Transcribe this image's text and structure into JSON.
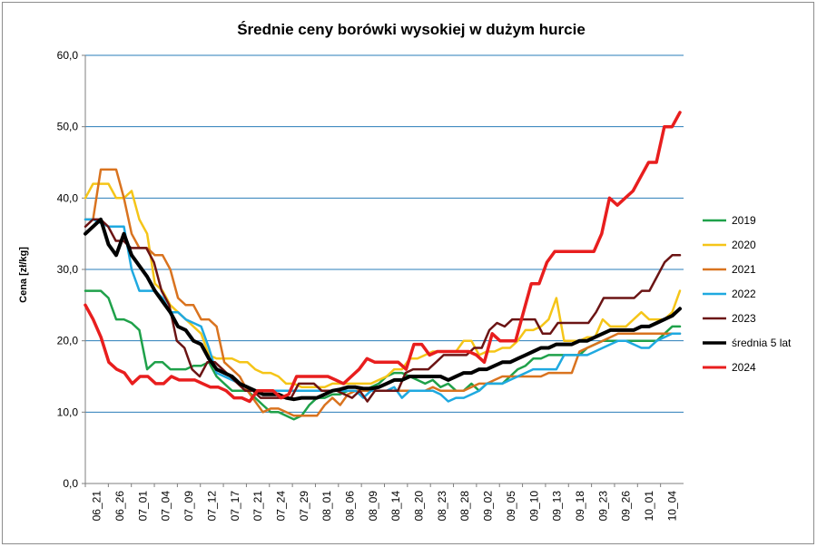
{
  "chart_data": {
    "type": "line",
    "title": "Średnie ceny borówki wysokiej w dużym hurcie",
    "ylabel": "Cena [zł/kg]",
    "xlabel": "",
    "ylim": [
      0,
      60
    ],
    "y_ticks": [
      "0,0",
      "10,0",
      "20,0",
      "30,0",
      "40,0",
      "50,0",
      "60,0"
    ],
    "x_ticks": [
      "06_21",
      "06_26",
      "07_01",
      "07_04",
      "07_09",
      "07_12",
      "07_17",
      "07_21",
      "07_24",
      "07_29",
      "08_01",
      "08_06",
      "08_09",
      "08_14",
      "08_20",
      "08_23",
      "08_28",
      "09_02",
      "09_05",
      "09_10",
      "09_13",
      "09_18",
      "09_23",
      "09_26",
      "10_01",
      "10_04"
    ],
    "grid": "horizontal",
    "legend_position": "right",
    "series": [
      {
        "name": "2019",
        "color": "#1fa14a",
        "width": 2.5,
        "values": [
          27,
          27,
          27,
          26,
          23,
          23,
          22.5,
          21.5,
          16,
          17,
          17,
          16,
          16,
          16,
          16.5,
          16.5,
          17,
          15,
          14,
          13,
          13,
          13,
          12,
          11,
          10,
          10,
          9.5,
          9,
          9.5,
          11,
          12,
          12,
          12.5,
          12.5,
          13,
          13,
          13,
          13.5,
          14,
          15,
          15.5,
          15.5,
          15,
          14.5,
          14,
          14.5,
          13.5,
          14,
          13,
          13,
          14,
          13,
          14,
          14,
          14,
          15,
          16,
          16.5,
          17.5,
          17.5,
          18,
          18,
          18,
          18,
          18,
          19,
          19.5,
          20,
          20,
          20,
          20,
          20,
          20,
          20,
          20,
          21,
          22,
          22
        ]
      },
      {
        "name": "2020",
        "color": "#f5c518",
        "width": 2.5,
        "values": [
          40,
          42,
          42,
          42,
          40,
          40,
          41,
          37,
          35,
          28,
          27,
          25,
          24,
          23,
          22,
          21,
          18,
          17.5,
          17.5,
          17.5,
          17,
          17,
          16,
          15.5,
          15.5,
          15,
          14,
          14,
          13.5,
          13.5,
          13.5,
          13.5,
          14,
          14,
          14,
          14,
          14,
          14,
          14.5,
          15,
          16,
          16,
          17.5,
          17.5,
          18,
          18.5,
          18.5,
          18.5,
          18.5,
          20,
          20,
          18,
          18.5,
          18.5,
          19,
          19,
          20,
          21.5,
          21.5,
          22,
          23,
          26,
          20,
          20,
          20,
          20.5,
          20.5,
          23,
          22,
          22,
          22,
          23,
          24,
          23,
          23,
          23,
          24,
          27
        ]
      },
      {
        "name": "2021",
        "color": "#d9731f",
        "width": 2.5,
        "values": [
          37,
          37,
          44,
          44,
          44,
          40,
          35,
          33,
          33,
          32,
          32,
          30,
          26,
          25,
          25,
          23,
          23,
          22,
          17,
          16,
          15,
          13,
          11.5,
          10,
          10.5,
          10.5,
          10,
          9.5,
          9.5,
          9.5,
          9.5,
          11,
          12,
          11,
          12.5,
          13,
          13,
          13,
          13,
          13,
          13,
          13,
          13,
          13,
          13,
          13.5,
          13,
          13,
          13,
          13,
          13.5,
          14,
          14,
          14.5,
          15,
          15,
          15,
          15,
          15,
          15,
          15.5,
          15.5,
          15.5,
          15.5,
          18.5,
          19,
          19.5,
          20,
          20.5,
          21,
          21,
          21,
          21,
          21,
          21,
          21,
          21,
          21
        ]
      },
      {
        "name": "2022",
        "color": "#1fa9e0",
        "width": 2.5,
        "values": [
          37,
          37,
          36.5,
          36,
          36,
          36,
          30,
          27,
          27,
          27,
          26,
          24,
          24,
          23,
          22.5,
          22,
          19,
          15.5,
          15,
          14.5,
          14,
          13.5,
          13,
          13,
          13,
          13,
          13,
          13,
          13,
          13,
          13,
          13,
          13,
          13,
          13,
          13,
          12,
          13,
          13,
          13,
          13.5,
          12,
          13,
          13,
          13,
          13,
          12.5,
          11.5,
          12,
          12,
          12.5,
          13,
          14,
          14,
          14,
          14.5,
          15,
          15.5,
          16,
          16,
          16,
          16,
          18,
          18,
          18,
          18,
          18.5,
          19,
          19.5,
          20,
          20,
          19.5,
          19,
          19,
          20,
          20.5,
          21,
          21
        ]
      },
      {
        "name": "2023",
        "color": "#6b1414",
        "width": 2.5,
        "values": [
          36,
          37,
          37,
          36,
          34,
          34,
          33,
          33,
          33,
          31,
          27,
          25,
          20,
          19,
          16,
          15,
          17,
          17,
          16,
          15,
          14,
          13,
          13,
          12,
          12,
          12,
          12,
          12,
          14,
          14,
          14,
          13,
          13,
          13,
          12.5,
          12,
          13,
          11.5,
          13,
          13,
          13,
          13,
          15.5,
          16,
          16,
          16,
          17,
          18,
          18,
          18,
          18,
          19,
          19,
          21.5,
          22.5,
          22,
          23,
          23,
          23,
          23,
          21,
          21,
          22.5,
          22.5,
          22.5,
          22.5,
          22.5,
          24,
          26,
          26,
          26,
          26,
          26,
          27,
          27,
          29,
          31,
          32,
          32
        ]
      },
      {
        "name": "średnia 5 lat",
        "color": "#000000",
        "width": 4,
        "values": [
          35,
          36,
          37,
          33.5,
          32,
          35,
          32,
          30.5,
          29,
          27,
          25.5,
          24,
          22,
          21.5,
          20,
          19.5,
          17.5,
          16,
          15.5,
          15,
          14,
          13.5,
          13,
          12.5,
          12.5,
          12.5,
          12,
          11.8,
          12,
          12,
          12,
          12.5,
          13,
          13.2,
          13.5,
          13.5,
          13.3,
          13.3,
          13.5,
          14,
          14.5,
          14.5,
          15,
          15,
          15,
          15,
          15,
          14.5,
          15,
          15.5,
          15.5,
          16,
          16,
          16.5,
          17,
          17,
          17.5,
          18,
          18.5,
          19,
          19,
          19.5,
          19.5,
          19.5,
          20,
          20,
          20.5,
          21,
          21.5,
          21.5,
          21.5,
          21.5,
          22,
          22,
          22.5,
          23,
          23.5,
          24.5
        ]
      },
      {
        "name": "2024",
        "color": "#e81e1e",
        "width": 3.5,
        "values": [
          25,
          23,
          20.5,
          17,
          16,
          15.5,
          14,
          15,
          15,
          14,
          14,
          15,
          14.5,
          14.5,
          14.5,
          14,
          13.5,
          13.5,
          13,
          12,
          12,
          11.5,
          13,
          13,
          13,
          12,
          12.5,
          15,
          15,
          15,
          15,
          15,
          14.5,
          14,
          15,
          16,
          17.5,
          17,
          17,
          17,
          17,
          16,
          19.5,
          19.5,
          18,
          18.5,
          18.5,
          18.5,
          18.5,
          18.5,
          18,
          17,
          21,
          20,
          20,
          20,
          24,
          28,
          28,
          31,
          32.5,
          32.5,
          32.5,
          32.5,
          32.5,
          32.5,
          35,
          40,
          39,
          40,
          41,
          43,
          45,
          45,
          50,
          50,
          52
        ]
      }
    ]
  }
}
